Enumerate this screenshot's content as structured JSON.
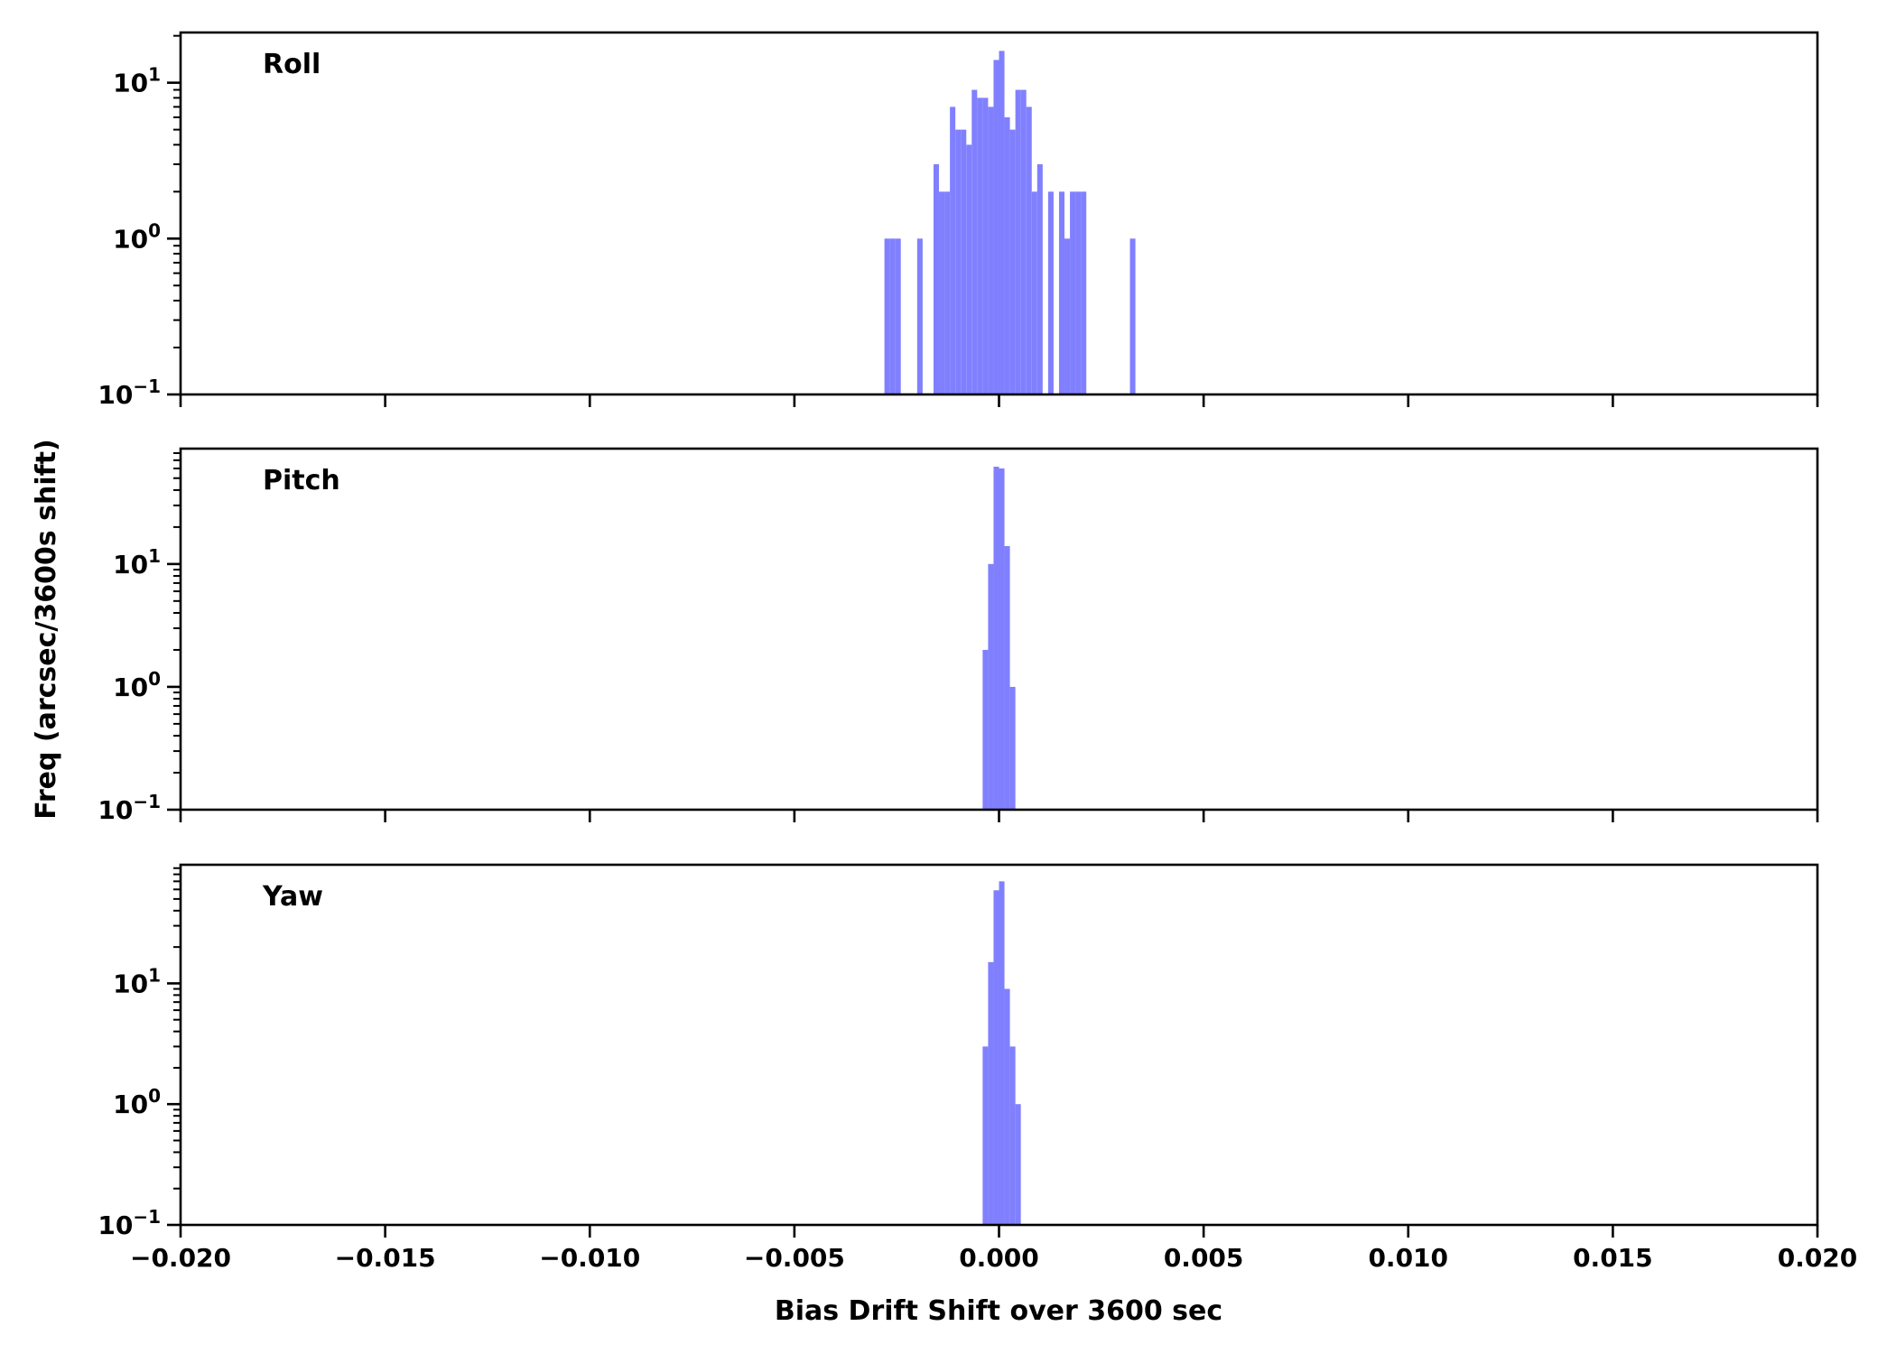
{
  "chart_data": {
    "type": "bar",
    "subtype": "histogram",
    "xlabel": "Bias Drift Shift over 3600 sec",
    "ylabel": "Freq (arcsec/3600s shift)",
    "xlim": [
      -0.02,
      0.02
    ],
    "xticks": [
      -0.02,
      -0.015,
      -0.01,
      -0.005,
      0.0,
      0.005,
      0.01,
      0.015,
      0.02
    ],
    "xtick_labels": [
      "−0.020",
      "−0.015",
      "−0.010",
      "−0.005",
      "0.000",
      "0.005",
      "0.010",
      "0.015",
      "0.020"
    ],
    "yscale": "log",
    "bin_width": 0.00013333,
    "bar_color": "#8080ff",
    "panels": [
      {
        "name": "Roll",
        "ylim": [
          0.1,
          21
        ],
        "yticks": [
          {
            "value": 0.1,
            "base": "10",
            "exp": "−1"
          },
          {
            "value": 1,
            "base": "10",
            "exp": "0"
          },
          {
            "value": 10,
            "base": "10",
            "exp": "1"
          }
        ],
        "bins": [
          {
            "bin": -21,
            "count": 1
          },
          {
            "bin": -20,
            "count": 1
          },
          {
            "bin": -19,
            "count": 1
          },
          {
            "bin": -15,
            "count": 1
          },
          {
            "bin": -12,
            "count": 3
          },
          {
            "bin": -11,
            "count": 2
          },
          {
            "bin": -10,
            "count": 2
          },
          {
            "bin": -9,
            "count": 7
          },
          {
            "bin": -8,
            "count": 5
          },
          {
            "bin": -7,
            "count": 5
          },
          {
            "bin": -6,
            "count": 4
          },
          {
            "bin": -5,
            "count": 9
          },
          {
            "bin": -4,
            "count": 8
          },
          {
            "bin": -3,
            "count": 8
          },
          {
            "bin": -2,
            "count": 7
          },
          {
            "bin": -1,
            "count": 14
          },
          {
            "bin": 0,
            "count": 16
          },
          {
            "bin": 1,
            "count": 6
          },
          {
            "bin": 2,
            "count": 5
          },
          {
            "bin": 3,
            "count": 9
          },
          {
            "bin": 4,
            "count": 9
          },
          {
            "bin": 5,
            "count": 7
          },
          {
            "bin": 6,
            "count": 2
          },
          {
            "bin": 7,
            "count": 3
          },
          {
            "bin": 9,
            "count": 2
          },
          {
            "bin": 11,
            "count": 2
          },
          {
            "bin": 12,
            "count": 1
          },
          {
            "bin": 13,
            "count": 2
          },
          {
            "bin": 14,
            "count": 2
          },
          {
            "bin": 15,
            "count": 2
          },
          {
            "bin": 24,
            "count": 1
          }
        ]
      },
      {
        "name": "Pitch",
        "ylim": [
          0.1,
          87
        ],
        "yticks": [
          {
            "value": 0.1,
            "base": "10",
            "exp": "−1"
          },
          {
            "value": 1,
            "base": "10",
            "exp": "0"
          },
          {
            "value": 10,
            "base": "10",
            "exp": "1"
          }
        ],
        "bins": [
          {
            "bin": -3,
            "count": 2
          },
          {
            "bin": -2,
            "count": 10
          },
          {
            "bin": -1,
            "count": 62
          },
          {
            "bin": 0,
            "count": 60
          },
          {
            "bin": 1,
            "count": 14
          },
          {
            "bin": 2,
            "count": 1
          }
        ]
      },
      {
        "name": "Yaw",
        "ylim": [
          0.1,
          96
        ],
        "yticks": [
          {
            "value": 0.1,
            "base": "10",
            "exp": "−1"
          },
          {
            "value": 1,
            "base": "10",
            "exp": "0"
          },
          {
            "value": 10,
            "base": "10",
            "exp": "1"
          }
        ],
        "bins": [
          {
            "bin": -3,
            "count": 3
          },
          {
            "bin": -2,
            "count": 15
          },
          {
            "bin": -1,
            "count": 59
          },
          {
            "bin": 0,
            "count": 70
          },
          {
            "bin": 1,
            "count": 9
          },
          {
            "bin": 2,
            "count": 3
          },
          {
            "bin": 3,
            "count": 1
          }
        ]
      }
    ]
  }
}
